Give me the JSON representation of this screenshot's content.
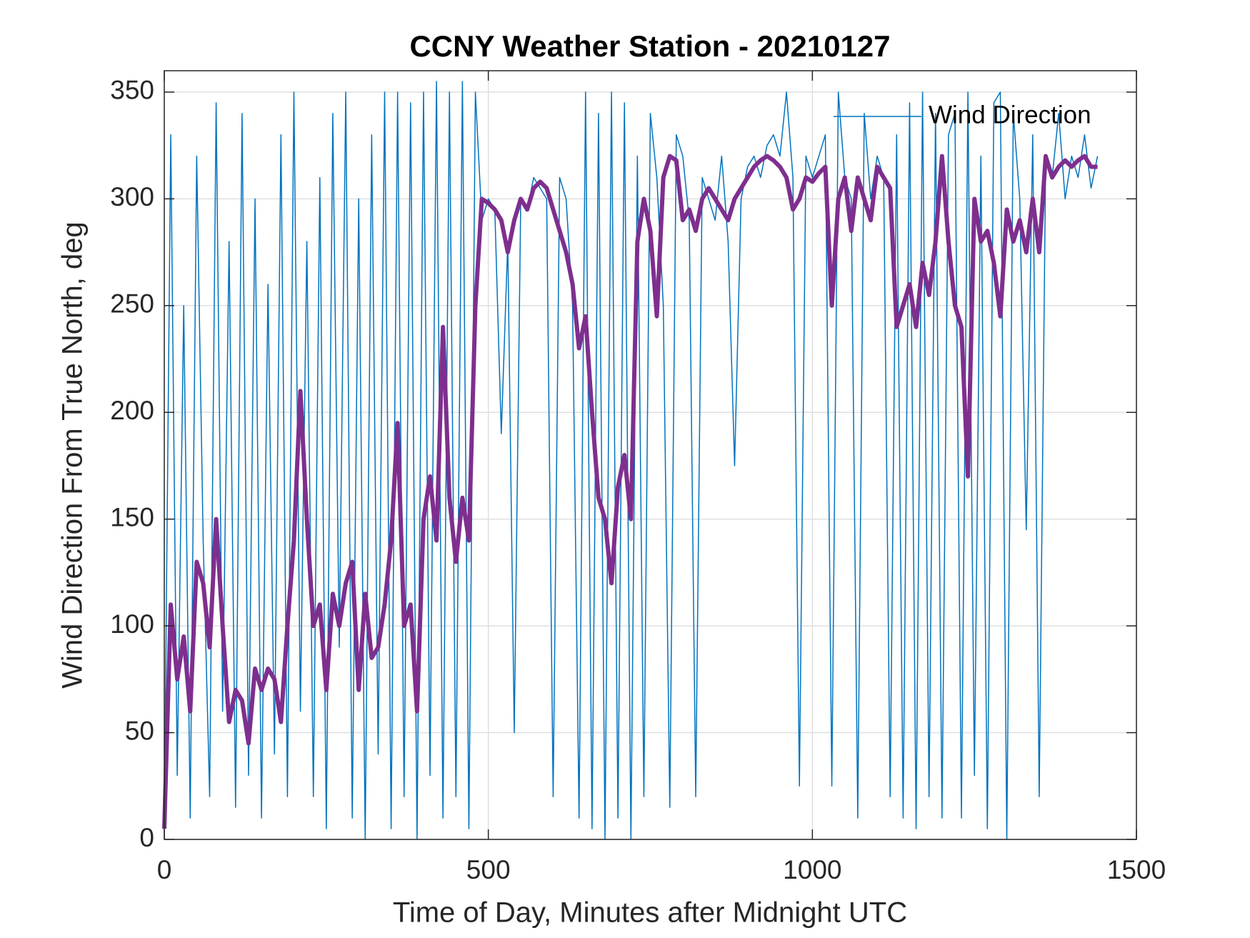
{
  "chart_data": {
    "type": "line",
    "title": "CCNY Weather Station - 20210127",
    "xlabel": "Time of Day, Minutes after Midnight UTC",
    "ylabel": "Wind Direction From True North, deg",
    "xlim": [
      0,
      1500
    ],
    "xticks": [
      0,
      500,
      1000,
      1500
    ],
    "ylim": [
      0,
      360
    ],
    "yticks": [
      0,
      50,
      100,
      150,
      200,
      250,
      300,
      350
    ],
    "grid": true,
    "legend": "upper right",
    "x": [
      0,
      10,
      20,
      30,
      40,
      50,
      60,
      70,
      80,
      90,
      100,
      110,
      120,
      130,
      140,
      150,
      160,
      170,
      180,
      190,
      200,
      210,
      220,
      230,
      240,
      250,
      260,
      270,
      280,
      290,
      300,
      310,
      320,
      330,
      340,
      350,
      360,
      370,
      380,
      390,
      400,
      410,
      420,
      430,
      440,
      450,
      460,
      470,
      480,
      490,
      500,
      510,
      520,
      530,
      540,
      550,
      560,
      570,
      580,
      590,
      600,
      610,
      620,
      630,
      640,
      650,
      660,
      670,
      680,
      690,
      700,
      710,
      720,
      730,
      740,
      750,
      760,
      770,
      780,
      790,
      800,
      810,
      820,
      830,
      840,
      850,
      860,
      870,
      880,
      890,
      900,
      910,
      920,
      930,
      940,
      950,
      960,
      970,
      980,
      990,
      1000,
      1010,
      1020,
      1030,
      1040,
      1050,
      1060,
      1070,
      1080,
      1090,
      1100,
      1110,
      1120,
      1130,
      1140,
      1150,
      1160,
      1170,
      1180,
      1190,
      1200,
      1210,
      1220,
      1230,
      1240,
      1250,
      1260,
      1270,
      1280,
      1290,
      1300,
      1310,
      1320,
      1330,
      1340,
      1350,
      1360,
      1370,
      1380,
      1390,
      1400,
      1410,
      1420,
      1430,
      1440
    ],
    "series": [
      {
        "name": "Wind Direction",
        "color": "#0072bd",
        "width": 1.5,
        "values": [
          5,
          330,
          30,
          250,
          10,
          320,
          140,
          20,
          345,
          60,
          280,
          15,
          340,
          30,
          300,
          10,
          260,
          40,
          330,
          20,
          350,
          60,
          280,
          20,
          310,
          5,
          340,
          90,
          350,
          10,
          300,
          0,
          330,
          40,
          350,
          5,
          350,
          20,
          345,
          0,
          350,
          30,
          355,
          10,
          350,
          20,
          355,
          5,
          350,
          290,
          300,
          295,
          190,
          280,
          50,
          300,
          295,
          310,
          305,
          300,
          20,
          310,
          300,
          250,
          10,
          350,
          5,
          340,
          0,
          350,
          10,
          345,
          0,
          320,
          20,
          340,
          310,
          250,
          15,
          330,
          320,
          290,
          20,
          310,
          300,
          290,
          320,
          280,
          175,
          300,
          315,
          320,
          310,
          325,
          330,
          320,
          350,
          310,
          25,
          320,
          310,
          320,
          330,
          25,
          350,
          310,
          300,
          10,
          340,
          300,
          320,
          310,
          20,
          330,
          10,
          345,
          5,
          350,
          20,
          340,
          10,
          330,
          340,
          10,
          350,
          30,
          320,
          5,
          345,
          350,
          0,
          340,
          300,
          145,
          330,
          20,
          320,
          310,
          340,
          300,
          320,
          310,
          330,
          305,
          320
        ]
      },
      {
        "color": "#7e2f8e",
        "width": 6,
        "values": [
          5,
          110,
          75,
          95,
          60,
          130,
          120,
          90,
          150,
          100,
          55,
          70,
          65,
          45,
          80,
          70,
          80,
          75,
          55,
          100,
          140,
          210,
          150,
          100,
          110,
          70,
          115,
          100,
          120,
          130,
          70,
          115,
          85,
          90,
          110,
          140,
          195,
          100,
          110,
          60,
          150,
          170,
          140,
          240,
          160,
          130,
          160,
          140,
          250,
          300,
          298,
          295,
          290,
          275,
          290,
          300,
          295,
          305,
          308,
          305,
          295,
          285,
          275,
          260,
          230,
          245,
          200,
          160,
          150,
          120,
          165,
          180,
          150,
          280,
          300,
          285,
          245,
          310,
          320,
          318,
          290,
          295,
          285,
          300,
          305,
          300,
          295,
          290,
          300,
          305,
          310,
          315,
          318,
          320,
          318,
          315,
          310,
          295,
          300,
          310,
          308,
          312,
          315,
          250,
          300,
          310,
          285,
          310,
          300,
          290,
          315,
          310,
          305,
          240,
          250,
          260,
          240,
          270,
          255,
          280,
          320,
          280,
          250,
          240,
          170,
          300,
          280,
          285,
          270,
          245,
          295,
          280,
          290,
          275,
          300,
          275,
          320,
          310,
          315,
          318,
          315,
          318,
          320,
          315,
          315
        ]
      }
    ]
  }
}
